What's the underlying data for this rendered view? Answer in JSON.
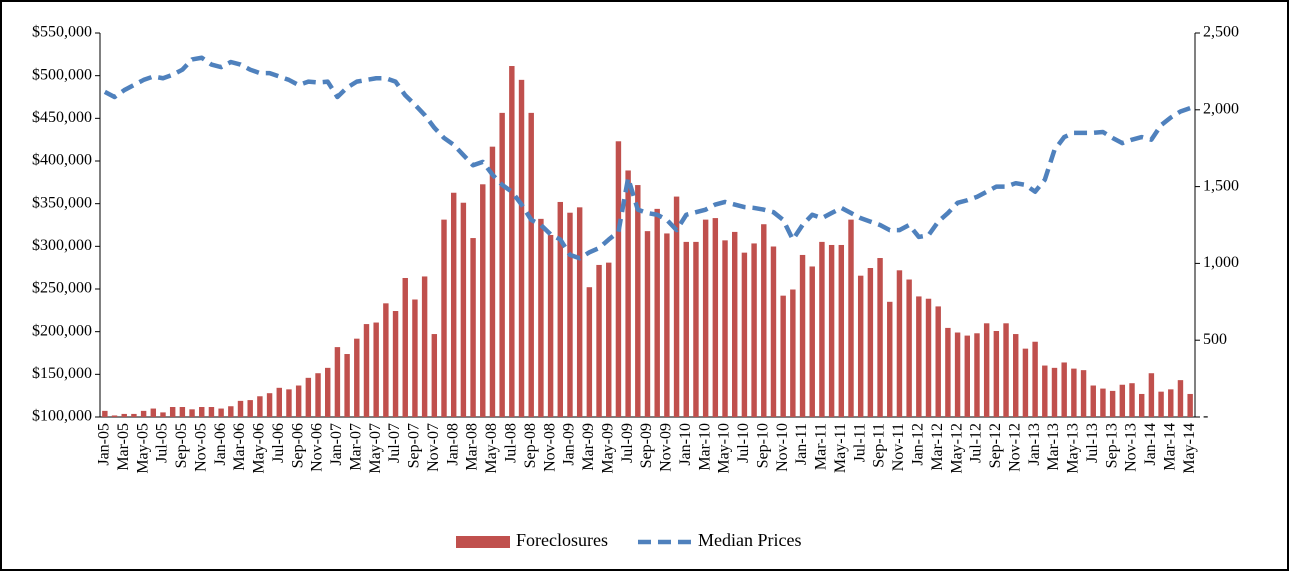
{
  "chart_data": {
    "type": "bar",
    "categories": [
      "Jan-05",
      null,
      "Mar-05",
      null,
      "May-05",
      null,
      "Jul-05",
      null,
      "Sep-05",
      null,
      "Nov-05",
      null,
      "Jan-06",
      null,
      "Mar-06",
      null,
      "May-06",
      null,
      "Jul-06",
      null,
      "Sep-06",
      null,
      "Nov-06",
      null,
      "Jan-07",
      null,
      "Mar-07",
      null,
      "May-07",
      null,
      "Jul-07",
      null,
      "Sep-07",
      null,
      "Nov-07",
      null,
      "Jan-08",
      null,
      "Mar-08",
      null,
      "May-08",
      null,
      "Jul-08",
      null,
      "Sep-08",
      null,
      "Nov-08",
      null,
      "Jan-09",
      null,
      "Mar-09",
      null,
      "May-09",
      null,
      "Jul-09",
      null,
      "Sep-09",
      null,
      "Nov-09",
      null,
      "Jan-10",
      null,
      "Mar-10",
      null,
      "May-10",
      null,
      "Jul-10",
      null,
      "Sep-10",
      null,
      "Nov-10",
      null,
      "Jan-11",
      null,
      "Mar-11",
      null,
      "May-11",
      null,
      "Jul-11",
      null,
      "Sep-11",
      null,
      "Nov-11",
      null,
      "Jan-12",
      null,
      "Mar-12",
      null,
      "May-12",
      null,
      "Jul-12",
      null,
      "Sep-12",
      null,
      "Nov-12",
      null,
      "Jan-13",
      null,
      "Mar-13",
      null,
      "May-13",
      null,
      "Jul-13",
      null,
      "Sep-13",
      null,
      "Nov-13",
      null,
      "Jan-14",
      null,
      "Mar-14",
      null,
      "May-14"
    ],
    "series": [
      {
        "name": "Foreclosures",
        "type": "bar",
        "axis": "y2",
        "color": "#c0504d",
        "values": [
          40,
          10,
          20,
          20,
          40,
          55,
          30,
          65,
          65,
          50,
          65,
          65,
          55,
          70,
          105,
          110,
          135,
          155,
          190,
          180,
          205,
          255,
          285,
          320,
          455,
          410,
          510,
          605,
          615,
          740,
          690,
          905,
          765,
          915,
          540,
          1285,
          1460,
          1395,
          1165,
          1515,
          1760,
          1980,
          2285,
          2195,
          1980,
          1290,
          1185,
          1400,
          1330,
          1365,
          845,
          990,
          1005,
          1795,
          1605,
          1510,
          1210,
          1355,
          1195,
          1435,
          1140,
          1140,
          1285,
          1295,
          1150,
          1205,
          1070,
          1130,
          1255,
          1110,
          790,
          830,
          1055,
          980,
          1140,
          1120,
          1120,
          1285,
          920,
          970,
          1035,
          750,
          955,
          895,
          785,
          770,
          720,
          580,
          550,
          530,
          545,
          610,
          560,
          610,
          540,
          445,
          490,
          335,
          320,
          355,
          315,
          305,
          205,
          185,
          170,
          210,
          220,
          150,
          285,
          165,
          180,
          240,
          150
        ]
      },
      {
        "name": "Median Prices",
        "type": "line",
        "axis": "y",
        "color": "#4f81bd",
        "values": [
          481000,
          475000,
          483000,
          489000,
          495000,
          499000,
          497000,
          501000,
          507000,
          519000,
          521000,
          513000,
          510000,
          516000,
          513000,
          507000,
          503000,
          503000,
          499000,
          495000,
          489000,
          493000,
          492000,
          493000,
          475000,
          486000,
          493000,
          495000,
          497000,
          497000,
          493000,
          477000,
          466000,
          454000,
          439000,
          427000,
          419000,
          407000,
          395000,
          399000,
          384000,
          372000,
          364000,
          349000,
          331000,
          325000,
          314000,
          308000,
          290000,
          286000,
          293000,
          298000,
          308000,
          317000,
          380000,
          343000,
          339000,
          337000,
          331000,
          319000,
          337000,
          340000,
          343000,
          349000,
          352000,
          349000,
          346000,
          345000,
          343000,
          340000,
          331000,
          308000,
          325000,
          337000,
          333000,
          339000,
          345000,
          339000,
          333000,
          329000,
          325000,
          319000,
          319000,
          325000,
          311000,
          313000,
          329000,
          339000,
          351000,
          354000,
          358000,
          364000,
          370000,
          370000,
          374000,
          372000,
          364000,
          378000,
          413000,
          428000,
          433000,
          433000,
          433000,
          434000,
          427000,
          421000,
          425000,
          428000,
          425000,
          442000,
          451000,
          458000,
          462000
        ]
      }
    ],
    "ylim": [
      100000,
      550000
    ],
    "yticks": [
      {
        "value": 100000,
        "label": "$100,000"
      },
      {
        "value": 150000,
        "label": "$150,000"
      },
      {
        "value": 200000,
        "label": "$200,000"
      },
      {
        "value": 250000,
        "label": "$250,000"
      },
      {
        "value": 300000,
        "label": "$300,000"
      },
      {
        "value": 350000,
        "label": "$350,000"
      },
      {
        "value": 400000,
        "label": "$400,000"
      },
      {
        "value": 450000,
        "label": "$450,000"
      },
      {
        "value": 500000,
        "label": "$500,000"
      },
      {
        "value": 550000,
        "label": "$550,000"
      }
    ],
    "y2lim": [
      0,
      2500
    ],
    "y2ticks": [
      {
        "value": 0,
        "label": "-"
      },
      500,
      {
        "value": 1000,
        "label": "1,000"
      },
      {
        "value": 1500,
        "label": "1,500"
      },
      {
        "value": 2000,
        "label": "2,000"
      },
      {
        "value": 2500,
        "label": "2,500"
      }
    ],
    "grid": false,
    "legend": "bottom"
  }
}
